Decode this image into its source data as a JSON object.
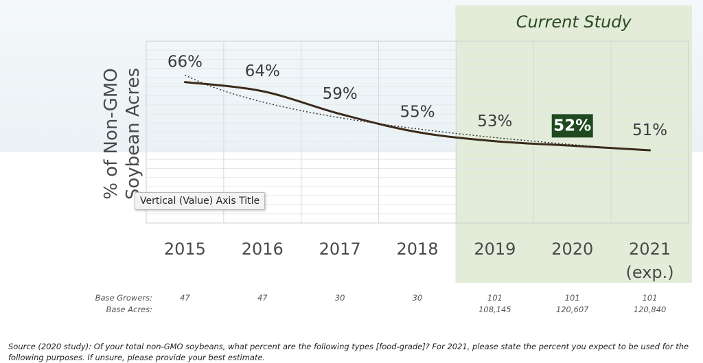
{
  "chart_data": {
    "type": "line",
    "categories": [
      "2015",
      "2016",
      "2017",
      "2018",
      "2019",
      "2020",
      "2021"
    ],
    "categories_line2": [
      "",
      "",
      "",
      "",
      "",
      "",
      "(exp.)"
    ],
    "values": [
      66,
      64,
      59,
      55,
      53,
      52,
      51
    ],
    "data_labels": [
      "66%",
      "64%",
      "59%",
      "55%",
      "53%",
      "52%",
      "51%"
    ],
    "highlight_index": 5,
    "ylabel_line1": "% of Non-GMO",
    "ylabel_line2": "Soybean Acres",
    "ylim": [
      35,
      75
    ],
    "grid": true,
    "trendline": "dotted",
    "shaded_region": {
      "from": "2019",
      "to": "2021",
      "label": "Current Study"
    },
    "base_rows": [
      {
        "label": "Base Growers:",
        "values": [
          "47",
          "47",
          "30",
          "30",
          "101",
          "101",
          "101"
        ]
      },
      {
        "label": "Base Acres:",
        "values": [
          "",
          "",
          "",
          "",
          "108,145",
          "120,607",
          "120,840"
        ]
      }
    ]
  },
  "tooltip": "Vertical (Value) Axis Title",
  "source_note": "Source (2020 study): Of your total non-GMO soybeans, what percent are the following types [food-grade]?  For 2021, please state the percent you expect to be used for the following purposes.  If unsure, please provide your best estimate.",
  "colors": {
    "line": "#3b2a1a",
    "highlight_box": "#1f4a1f",
    "shaded_region": "#e2ecd9",
    "grid": "#d8dde0"
  }
}
